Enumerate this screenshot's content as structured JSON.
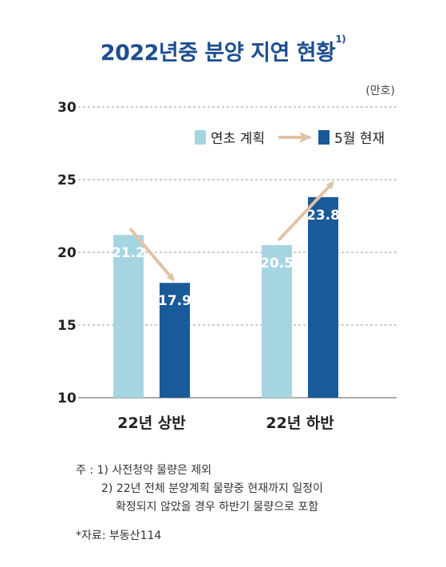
{
  "title": "2022년중 분양 지연 현황",
  "title_note": "1)",
  "unit": "(만호)",
  "chart_data": {
    "type": "bar",
    "categories": [
      "22년 상반",
      "22년 하반"
    ],
    "series": [
      {
        "name": "연초 계획",
        "values": [
          21.2,
          20.5
        ],
        "labels": [
          "21.2",
          "20.5"
        ],
        "color": "#a6d5e2"
      },
      {
        "name": "5월 현재",
        "values": [
          17.9,
          23.8
        ],
        "labels": [
          "17.9",
          "23.8"
        ],
        "color": "#1a5a98"
      }
    ],
    "yticks": [
      "10",
      "15",
      "20",
      "25",
      "30"
    ],
    "ylim": [
      10,
      30
    ],
    "grid": true,
    "legend": "top-right",
    "arrow_color": "#e0c3a6"
  },
  "notes": {
    "line1": "주 : 1) 사전청약 물량은 제외",
    "line2": "2) 22년 전체 분양계획 물량중 현재까지 일정이",
    "line3": "확정되지 않았을 경우 하반기 물량으로 포함"
  },
  "source": "*자료: 부동산114"
}
